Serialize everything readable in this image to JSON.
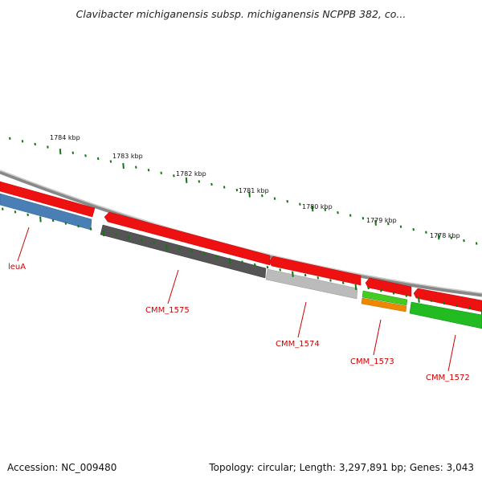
{
  "title": "Clavibacter michiganensis subsp. michiganensis NCPPB 382, co...",
  "footer": {
    "accession": "Accession: NC_009480",
    "summary": "Topology: circular; Length: 3,297,891 bp; Genes: 3,043"
  },
  "ruler": {
    "major_labels": [
      "1784 kbp",
      "1783 kbp",
      "1782 kbp",
      "1781 kbp",
      "1780 kbp",
      "1779 kbp",
      "1778 kbp"
    ]
  },
  "genes": [
    {
      "label": "leuA",
      "color": "#4a7fb5"
    },
    {
      "label": "CMM_1575",
      "color": "#555555"
    },
    {
      "label": "CMM_1574",
      "color": "#bbbbbb"
    },
    {
      "label": "CMM_1573",
      "color": "#ee8800"
    },
    {
      "label": "CMM_1572",
      "color": "#22bb22"
    }
  ],
  "colors": {
    "backbone": "#888888",
    "forward_strand": "#ee1111",
    "tick": "#117711",
    "label": "#cc0000"
  }
}
